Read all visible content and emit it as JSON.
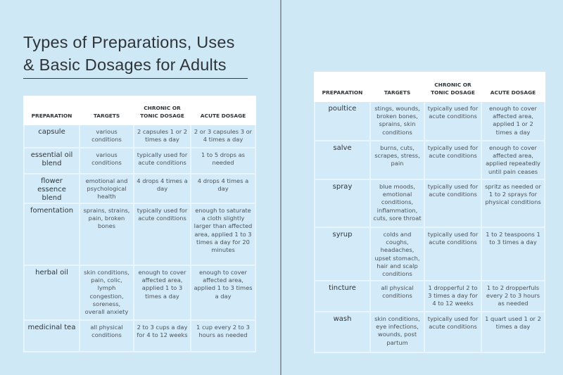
{
  "title_lines": [
    "Types of Preparations, Uses",
    "& Basic Dosages for Adults"
  ],
  "headers": {
    "preparation": "PREPARATION",
    "targets": "TARGETS",
    "chronic": "CHRONIC OR TONIC DOSAGE",
    "acute": "ACUTE DOSAGE"
  },
  "left_table": [
    {
      "preparation": "capsule",
      "targets": "various conditions",
      "chronic": "2 capsules 1 or 2 times a day",
      "acute": "2 or 3 capsules 3 or 4 times a day"
    },
    {
      "preparation": "essential oil blend",
      "targets": "various conditions",
      "chronic": "typically used for acute conditions",
      "acute": "1 to 5 drops as needed"
    },
    {
      "preparation": "flower essence blend",
      "targets": "emotional and psychological health",
      "chronic": "4 drops 4 times a day",
      "acute": "4 drops 4 times a day"
    },
    {
      "preparation": "fomentation",
      "targets": "sprains, strains, pain, broken bones",
      "chronic": "typically used for acute conditions",
      "acute": "enough to saturate a cloth slightly larger than affected area, applied 1 to 3 times a day for 20 minutes"
    },
    {
      "preparation": "herbal oil",
      "targets": "skin conditions, pain, colic, lymph congestion, soreness, overall anxiety",
      "chronic": "enough to cover affected area, applied 1 to 3 times a day",
      "acute": "enough to cover affected area, applied 1 to 3 times a day"
    },
    {
      "preparation": "medicinal tea",
      "targets": "all physical conditions",
      "chronic": "2 to 3 cups a day for 4 to 12 weeks",
      "acute": "1 cup every 2 to 3 hours as needed"
    }
  ],
  "right_table": [
    {
      "preparation": "poultice",
      "targets": "stings, wounds, broken bones, sprains, skin conditions",
      "chronic": "typically used for acute conditions",
      "acute": "enough to cover affected area, applied 1 or 2 times a day"
    },
    {
      "preparation": "salve",
      "targets": "burns, cuts, scrapes, stress, pain",
      "chronic": "typically used for acute conditions",
      "acute": "enough to cover affected area, applied repeatedly until pain ceases"
    },
    {
      "preparation": "spray",
      "targets": "blue moods, emotional conditions, inflammation, cuts, sore throat",
      "chronic": "typically used for acute conditions",
      "acute": "spritz as needed or 1 to 2 sprays for physical conditions"
    },
    {
      "preparation": "syrup",
      "targets": "colds and coughs, headaches, upset stomach, hair and scalp conditions",
      "chronic": "typically used for acute conditions",
      "acute": "1 to 2 teaspoons 1 to 3 times a day"
    },
    {
      "preparation": "tincture",
      "targets": "all physical conditions",
      "chronic": "1 dropperful 2 to 3 times a day for 4 to 12 weeks",
      "acute": "1 to 2 dropperfuls every 2 to 3 hours as needed"
    },
    {
      "preparation": "wash",
      "targets": "skin conditions, eye infections, wounds, post partum",
      "chronic": "typically used for acute conditions",
      "acute": "1 quart used 1 or 2 times a day"
    }
  ],
  "colors": {
    "background": "#cfe8f6",
    "cell": "#d3ebf8",
    "header": "#ffffff",
    "text": "#3a3f44"
  }
}
